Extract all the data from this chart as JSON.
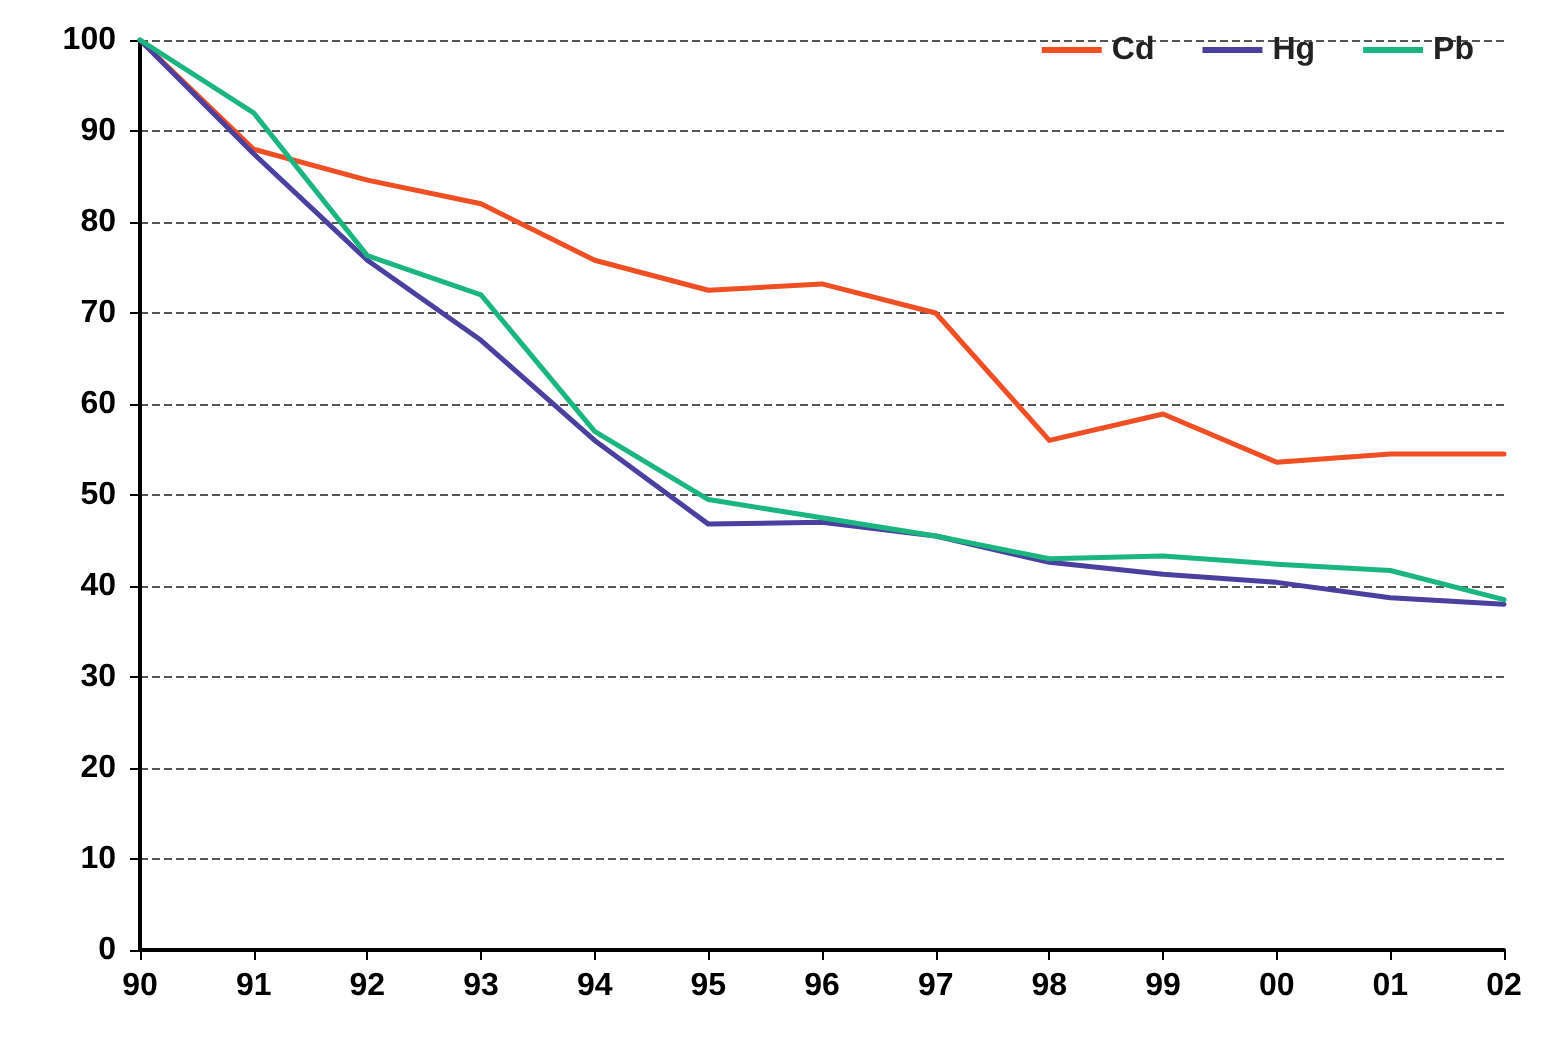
{
  "chart_data": {
    "type": "line",
    "categories": [
      "90",
      "91",
      "92",
      "93",
      "94",
      "95",
      "96",
      "97",
      "98",
      "99",
      "00",
      "01",
      "02"
    ],
    "series": [
      {
        "name": "Cd",
        "color": "#f04e23",
        "values": [
          100,
          88,
          84.6,
          82,
          75.8,
          72.5,
          73.2,
          70,
          56,
          58.9,
          53.6,
          54.5,
          54.5
        ]
      },
      {
        "name": "Hg",
        "color": "#4b3fa0",
        "values": [
          100,
          87.5,
          75.8,
          67,
          56,
          46.8,
          47,
          45.5,
          42.6,
          41.3,
          40.4,
          38.7,
          38
        ]
      },
      {
        "name": "Pb",
        "color": "#1bb57f",
        "values": [
          100,
          92,
          76.3,
          72,
          57,
          49.5,
          47.5,
          45.5,
          43,
          43.3,
          42.4,
          41.7,
          38.5
        ]
      }
    ],
    "ylim": [
      0,
      100
    ],
    "yticks": [
      0,
      10,
      20,
      30,
      40,
      50,
      60,
      70,
      80,
      90,
      100
    ],
    "grid": "y",
    "legend": "top right",
    "marker": "none",
    "line_style": "solid"
  }
}
